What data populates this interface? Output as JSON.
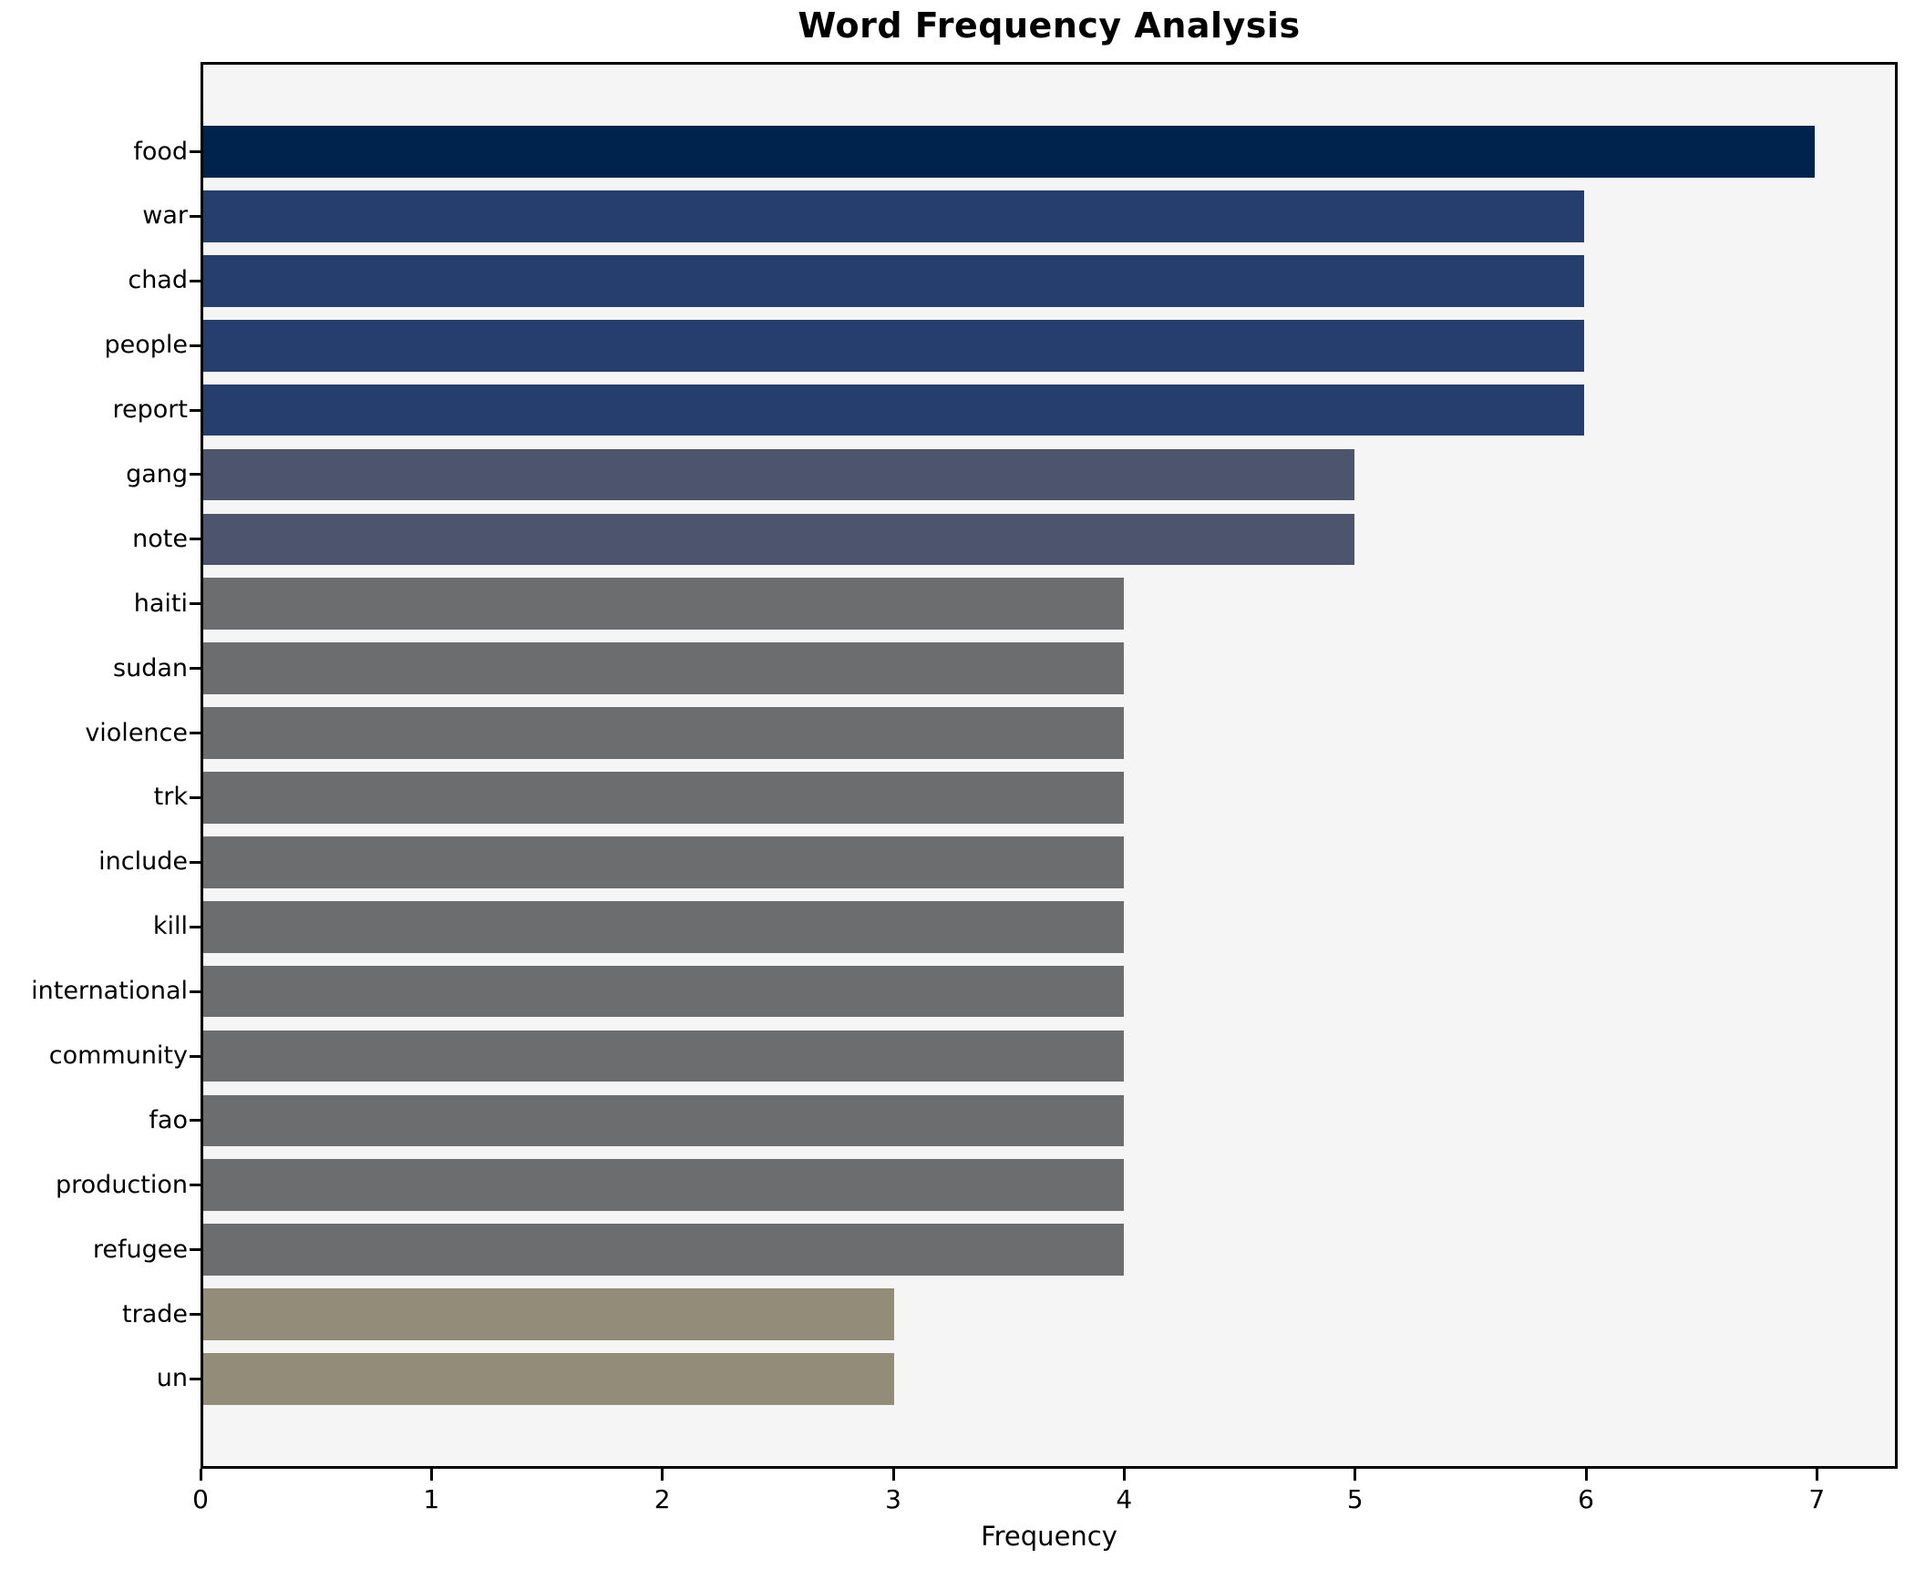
{
  "chart_data": {
    "type": "bar",
    "orientation": "horizontal",
    "title": "Word Frequency Analysis",
    "xlabel": "Frequency",
    "ylabel": "",
    "categories": [
      "food",
      "war",
      "chad",
      "people",
      "report",
      "gang",
      "note",
      "haiti",
      "sudan",
      "violence",
      "trk",
      "include",
      "kill",
      "international",
      "community",
      "fao",
      "production",
      "refugee",
      "trade",
      "un"
    ],
    "values": [
      7,
      6,
      6,
      6,
      6,
      5,
      5,
      4,
      4,
      4,
      4,
      4,
      4,
      4,
      4,
      4,
      4,
      4,
      3,
      3
    ],
    "bar_colors": [
      "#00234d",
      "#253e6d",
      "#253e6d",
      "#253e6d",
      "#253e6d",
      "#4d556e",
      "#4d556e",
      "#6b6d6f",
      "#6b6d6f",
      "#6b6d6f",
      "#6b6d6f",
      "#6b6d6f",
      "#6b6d6f",
      "#6b6d6f",
      "#6b6d6f",
      "#6b6d6f",
      "#6b6d6f",
      "#6b6d6f",
      "#928c79",
      "#928c79"
    ],
    "x_ticks": [
      0,
      1,
      2,
      3,
      4,
      5,
      6,
      7
    ],
    "xlim": [
      0,
      7.35
    ],
    "grid": false,
    "legend": false,
    "plot_background": "#f5f5f5",
    "figure_background": "#ffffff",
    "spine_color": "#000000"
  }
}
